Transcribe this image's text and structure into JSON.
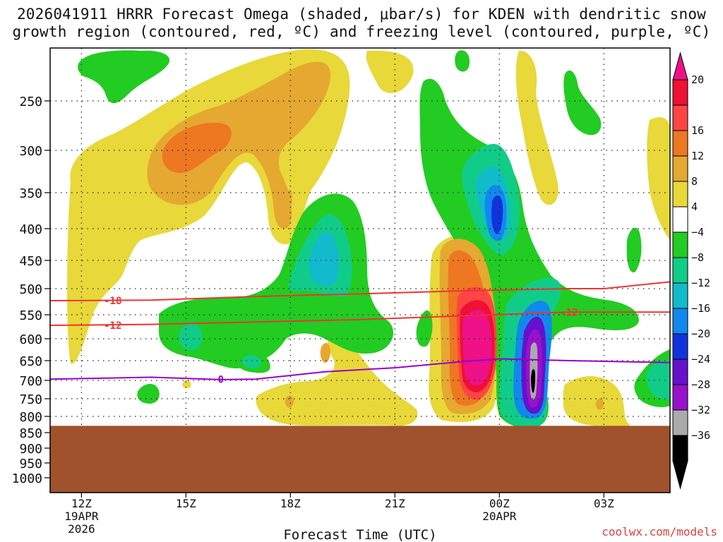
{
  "title": {
    "line1": "2026041911 HRRR Forecast Omega (shaded, μbar/s) for KDEN with dendritic snow",
    "line2": "growth region (contoured, red, ºC) and freezing level (contoured, purple, ºC)"
  },
  "credit": "coolwx.com/models",
  "chart_data": {
    "type": "time-height cross section (filled contour)",
    "x_axis": {
      "label": "Forecast Time (UTC)",
      "ticks": [
        {
          "hour": 12,
          "label": "12Z",
          "sub": [
            "19APR",
            "2026"
          ]
        },
        {
          "hour": 15,
          "label": "15Z",
          "sub": []
        },
        {
          "hour": 18,
          "label": "18Z",
          "sub": []
        },
        {
          "hour": 21,
          "label": "21Z",
          "sub": []
        },
        {
          "hour": 24,
          "label": "00Z",
          "sub": [
            "20APR"
          ]
        },
        {
          "hour": 27,
          "label": "03Z",
          "sub": []
        }
      ],
      "range_hours": [
        11.1,
        28.9
      ]
    },
    "y_axis": {
      "units": "hPa",
      "scale": "pressure (log-like, increasing downward)",
      "ticks": [
        250,
        300,
        350,
        400,
        450,
        500,
        550,
        600,
        650,
        700,
        750,
        800,
        850,
        900,
        950,
        1000
      ],
      "range": [
        200,
        1050
      ],
      "grid": "dotted"
    },
    "colorbar": {
      "labels": [
        "20",
        "16",
        "12",
        "8",
        "4",
        "−4",
        "−8",
        "−12",
        "−16",
        "−20",
        "−24",
        "−28",
        "−32",
        "−36"
      ],
      "colors": [
        "#ee1133",
        "#ff4444",
        "#ee7722",
        "#e5a830",
        "#e8d83a",
        "#ffffff",
        "#22cc22",
        "#11cc88",
        "#11bbcc",
        "#1188ee",
        "#1133dd",
        "#6611cc",
        "#9911cc",
        "#aaaaaa",
        "#000000"
      ],
      "top_arrow_color": "#ee1188",
      "bottom_arrow_color": "#000000"
    },
    "terrain": {
      "surface_hPa": 840,
      "color": "#a0522d"
    },
    "contours": [
      {
        "name": "dendritic snow growth upper (°C)",
        "label": "-18",
        "color": "#ee3333",
        "points": [
          [
            11.1,
            523
          ],
          [
            14,
            522
          ],
          [
            17,
            515
          ],
          [
            20,
            510
          ],
          [
            23,
            504
          ],
          [
            26,
            500
          ],
          [
            27,
            500
          ],
          [
            28.9,
            488
          ]
        ]
      },
      {
        "name": "dendritic snow growth lower (°C)",
        "label": "-12",
        "color": "#ee3333",
        "points": [
          [
            11.1,
            572
          ],
          [
            14,
            570
          ],
          [
            17,
            565
          ],
          [
            20,
            560
          ],
          [
            23,
            552
          ],
          [
            26,
            545
          ],
          [
            28.9,
            545
          ]
        ]
      },
      {
        "name": "freezing level (°C)",
        "label": "0",
        "color": "#9900cc",
        "points": [
          [
            11.1,
            697
          ],
          [
            14,
            692
          ],
          [
            16,
            698
          ],
          [
            17,
            697
          ],
          [
            19,
            678
          ],
          [
            21,
            668
          ],
          [
            23,
            652
          ],
          [
            24,
            646
          ],
          [
            26,
            650
          ],
          [
            28.9,
            655
          ]
        ]
      }
    ],
    "contour_labels": [
      {
        "text": "-18",
        "hour": 12.9,
        "hPa": 523,
        "color": "#ee3333"
      },
      {
        "text": "-12",
        "hour": 12.9,
        "hPa": 572,
        "color": "#ee3333"
      },
      {
        "text": "0",
        "hour": 16.0,
        "hPa": 697,
        "color": "#9900cc"
      },
      {
        "text": "-12",
        "hour": 26.0,
        "hPa": 545,
        "color": "#ee3333"
      }
    ],
    "shaded_regions": [
      {
        "level": "4 to 8",
        "color": "#e8d83a",
        "center_hour": 13.5,
        "center_hPa": 450
      },
      {
        "level": "4 to 8",
        "color": "#e8d83a",
        "center_hour": 17.5,
        "center_hPa": 260
      },
      {
        "level": "8 to 12",
        "color": "#e5a830",
        "center_hour": 16.5,
        "center_hPa": 280
      },
      {
        "level": "12 to 16",
        "color": "#ee7722",
        "center_hour": 15.5,
        "center_hPa": 300
      },
      {
        "level": "-4 to -8",
        "color": "#22cc22",
        "center_hour": 17.5,
        "center_hPa": 570
      },
      {
        "level": "-4 to -8",
        "color": "#22cc22",
        "center_hour": 19.5,
        "center_hPa": 440
      },
      {
        "level": "-12 to -16",
        "color": "#11bbcc",
        "center_hour": 19.3,
        "center_hPa": 430
      },
      {
        "level": "-4 to -8",
        "color": "#22cc22",
        "center_hour": 23.2,
        "center_hPa": 330
      },
      {
        "level": "-16 to -24",
        "color": "#1133dd",
        "center_hour": 24.0,
        "center_hPa": 380
      },
      {
        "level": "8 to 20+",
        "color": "#ee1188",
        "center_hour": 23.7,
        "center_hPa": 600
      },
      {
        "level": "-24 to -36",
        "color": "#6611cc",
        "center_hour": 25.0,
        "center_hPa": 650
      },
      {
        "level": "4 to 8",
        "color": "#e8d83a",
        "center_hour": 26.7,
        "center_hPa": 770
      },
      {
        "level": "4 to 8",
        "color": "#e8d83a",
        "center_hour": 18.8,
        "center_hPa": 700
      }
    ]
  }
}
